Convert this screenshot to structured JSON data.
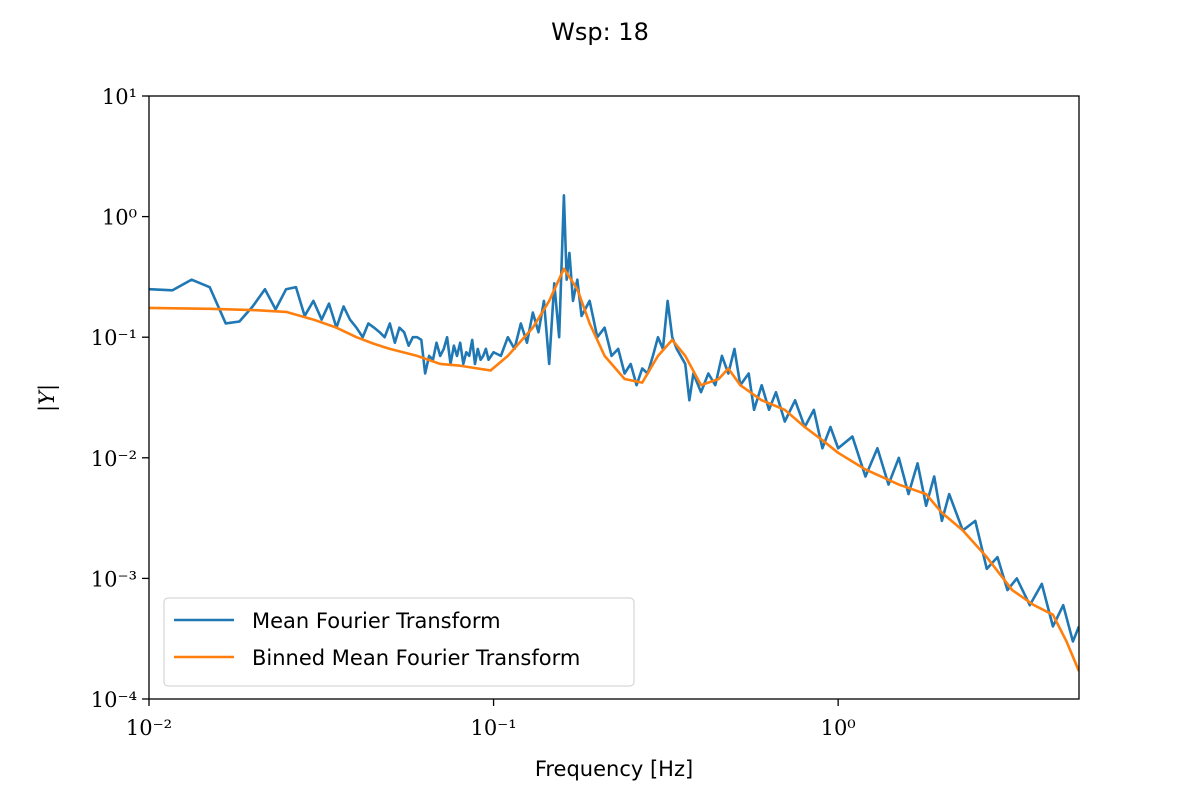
{
  "chart_data": {
    "type": "line",
    "title": "Wsp: 18",
    "x_label": "Frequency [Hz]",
    "y_label": "|Y|",
    "xscale": "log",
    "yscale": "log",
    "legend": "lower left",
    "xlim": [
      0.01,
      5
    ],
    "ylim": [
      0.0001,
      10
    ],
    "xticks": [
      {
        "value": 0.01,
        "label": "10⁻²"
      },
      {
        "value": 0.1,
        "label": "10⁻¹"
      },
      {
        "value": 1,
        "label": "10⁰"
      }
    ],
    "yticks": [
      {
        "value": 0.0001,
        "label": "10⁻⁴"
      },
      {
        "value": 0.001,
        "label": "10⁻³"
      },
      {
        "value": 0.01,
        "label": "10⁻²"
      },
      {
        "value": 0.1,
        "label": "10⁻¹"
      },
      {
        "value": 1,
        "label": "10⁰"
      },
      {
        "value": 10,
        "label": "10¹"
      }
    ],
    "series": [
      {
        "name": "Mean Fourier Transform",
        "color": "#1f77b4",
        "x": [
          0.01,
          0.0117,
          0.0133,
          0.015,
          0.0167,
          0.0183,
          0.02,
          0.0217,
          0.0233,
          0.025,
          0.0267,
          0.0283,
          0.03,
          0.0317,
          0.0333,
          0.035,
          0.0367,
          0.0383,
          0.04,
          0.0417,
          0.0433,
          0.045,
          0.0467,
          0.0483,
          0.05,
          0.0517,
          0.0533,
          0.055,
          0.0567,
          0.0583,
          0.06,
          0.0617,
          0.0633,
          0.065,
          0.0667,
          0.0683,
          0.07,
          0.0717,
          0.0733,
          0.075,
          0.0767,
          0.0783,
          0.08,
          0.0817,
          0.0833,
          0.085,
          0.0867,
          0.0883,
          0.09,
          0.0917,
          0.0933,
          0.095,
          0.0967,
          0.1,
          0.105,
          0.11,
          0.115,
          0.12,
          0.125,
          0.13,
          0.135,
          0.14,
          0.145,
          0.15,
          0.155,
          0.16,
          0.163,
          0.166,
          0.17,
          0.175,
          0.18,
          0.19,
          0.2,
          0.21,
          0.22,
          0.23,
          0.24,
          0.25,
          0.26,
          0.27,
          0.28,
          0.29,
          0.3,
          0.31,
          0.32,
          0.33,
          0.34,
          0.36,
          0.37,
          0.38,
          0.4,
          0.42,
          0.44,
          0.46,
          0.48,
          0.5,
          0.52,
          0.55,
          0.57,
          0.6,
          0.63,
          0.66,
          0.7,
          0.75,
          0.8,
          0.85,
          0.9,
          0.95,
          1.0,
          1.1,
          1.2,
          1.3,
          1.4,
          1.5,
          1.6,
          1.7,
          1.8,
          1.9,
          2.0,
          2.1,
          2.3,
          2.5,
          2.7,
          2.9,
          3.1,
          3.3,
          3.6,
          3.9,
          4.2,
          4.5,
          4.8,
          5.0
        ],
        "values": [
          0.25,
          0.245,
          0.3,
          0.26,
          0.13,
          0.135,
          0.18,
          0.25,
          0.17,
          0.25,
          0.26,
          0.15,
          0.2,
          0.14,
          0.19,
          0.12,
          0.18,
          0.14,
          0.12,
          0.1,
          0.13,
          0.12,
          0.11,
          0.1,
          0.13,
          0.09,
          0.12,
          0.11,
          0.085,
          0.1,
          0.1,
          0.095,
          0.05,
          0.07,
          0.065,
          0.09,
          0.07,
          0.08,
          0.1,
          0.06,
          0.085,
          0.07,
          0.09,
          0.06,
          0.075,
          0.07,
          0.095,
          0.06,
          0.08,
          0.065,
          0.07,
          0.08,
          0.065,
          0.075,
          0.07,
          0.1,
          0.08,
          0.13,
          0.09,
          0.16,
          0.11,
          0.2,
          0.06,
          0.28,
          0.1,
          1.5,
          0.3,
          0.5,
          0.2,
          0.3,
          0.15,
          0.2,
          0.1,
          0.12,
          0.07,
          0.08,
          0.05,
          0.06,
          0.04,
          0.055,
          0.05,
          0.07,
          0.1,
          0.08,
          0.2,
          0.1,
          0.08,
          0.06,
          0.03,
          0.05,
          0.035,
          0.05,
          0.04,
          0.07,
          0.05,
          0.08,
          0.04,
          0.05,
          0.025,
          0.04,
          0.025,
          0.035,
          0.02,
          0.03,
          0.018,
          0.025,
          0.012,
          0.018,
          0.012,
          0.015,
          0.007,
          0.012,
          0.006,
          0.01,
          0.005,
          0.009,
          0.004,
          0.007,
          0.003,
          0.005,
          0.0025,
          0.003,
          0.0012,
          0.0015,
          0.0008,
          0.001,
          0.0006,
          0.0009,
          0.0004,
          0.0006,
          0.0003,
          0.0004
        ]
      },
      {
        "name": "Binned Mean Fourier Transform",
        "color": "#ff7f0e",
        "x": [
          0.01,
          0.015,
          0.02,
          0.025,
          0.03,
          0.035,
          0.04,
          0.045,
          0.05,
          0.06,
          0.07,
          0.08,
          0.09,
          0.098,
          0.11,
          0.13,
          0.145,
          0.16,
          0.175,
          0.19,
          0.21,
          0.24,
          0.27,
          0.3,
          0.33,
          0.36,
          0.4,
          0.45,
          0.48,
          0.52,
          0.6,
          0.7,
          0.8,
          0.9,
          1.0,
          1.2,
          1.5,
          1.8,
          2.0,
          2.3,
          2.7,
          3.2,
          3.7,
          4.2,
          4.6,
          5.0
        ],
        "values": [
          0.175,
          0.172,
          0.168,
          0.162,
          0.14,
          0.12,
          0.1,
          0.088,
          0.08,
          0.07,
          0.06,
          0.058,
          0.055,
          0.053,
          0.07,
          0.12,
          0.2,
          0.37,
          0.25,
          0.13,
          0.07,
          0.045,
          0.042,
          0.07,
          0.095,
          0.07,
          0.04,
          0.045,
          0.055,
          0.04,
          0.03,
          0.025,
          0.018,
          0.014,
          0.011,
          0.008,
          0.006,
          0.005,
          0.0035,
          0.0025,
          0.0015,
          0.0008,
          0.0006,
          0.0005,
          0.0003,
          0.00017
        ]
      }
    ]
  }
}
